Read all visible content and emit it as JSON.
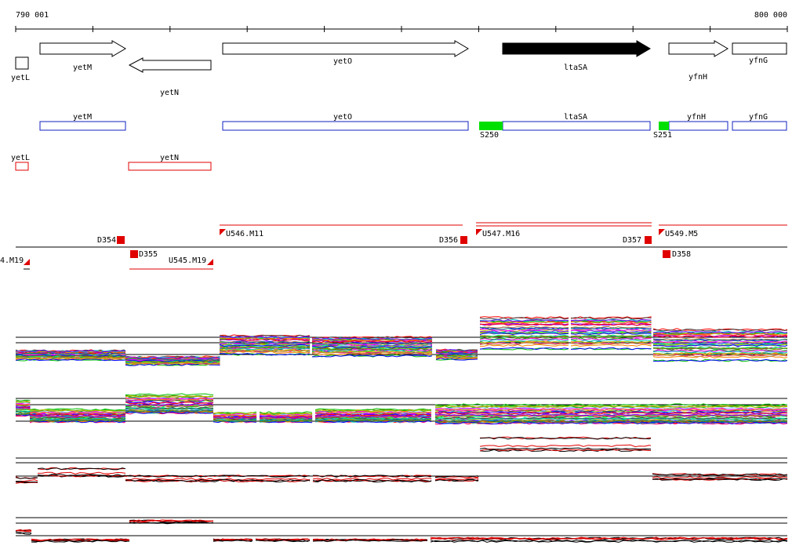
{
  "axis": {
    "start": "790 001",
    "end": "800 000"
  },
  "genes": {
    "yetL": "yetL",
    "yetM": "yetM",
    "yetN": "yetN",
    "yetO": "yetO",
    "ltaSA": "ltaSA",
    "yfnH": "yfnH",
    "yfnG": "yfnG"
  },
  "blue_track": [
    "yetM",
    "yetO",
    "ltaSA",
    "yfnH",
    "yfnG"
  ],
  "sites": [
    "S250",
    "S251"
  ],
  "red_track": [
    "yetL",
    "yetN"
  ],
  "segments": [
    "D354",
    "D355",
    "D356",
    "D357",
    "D358",
    "U546.M11",
    "U545.M19",
    "U549.M5",
    "U547.M16",
    "4.M19"
  ]
}
